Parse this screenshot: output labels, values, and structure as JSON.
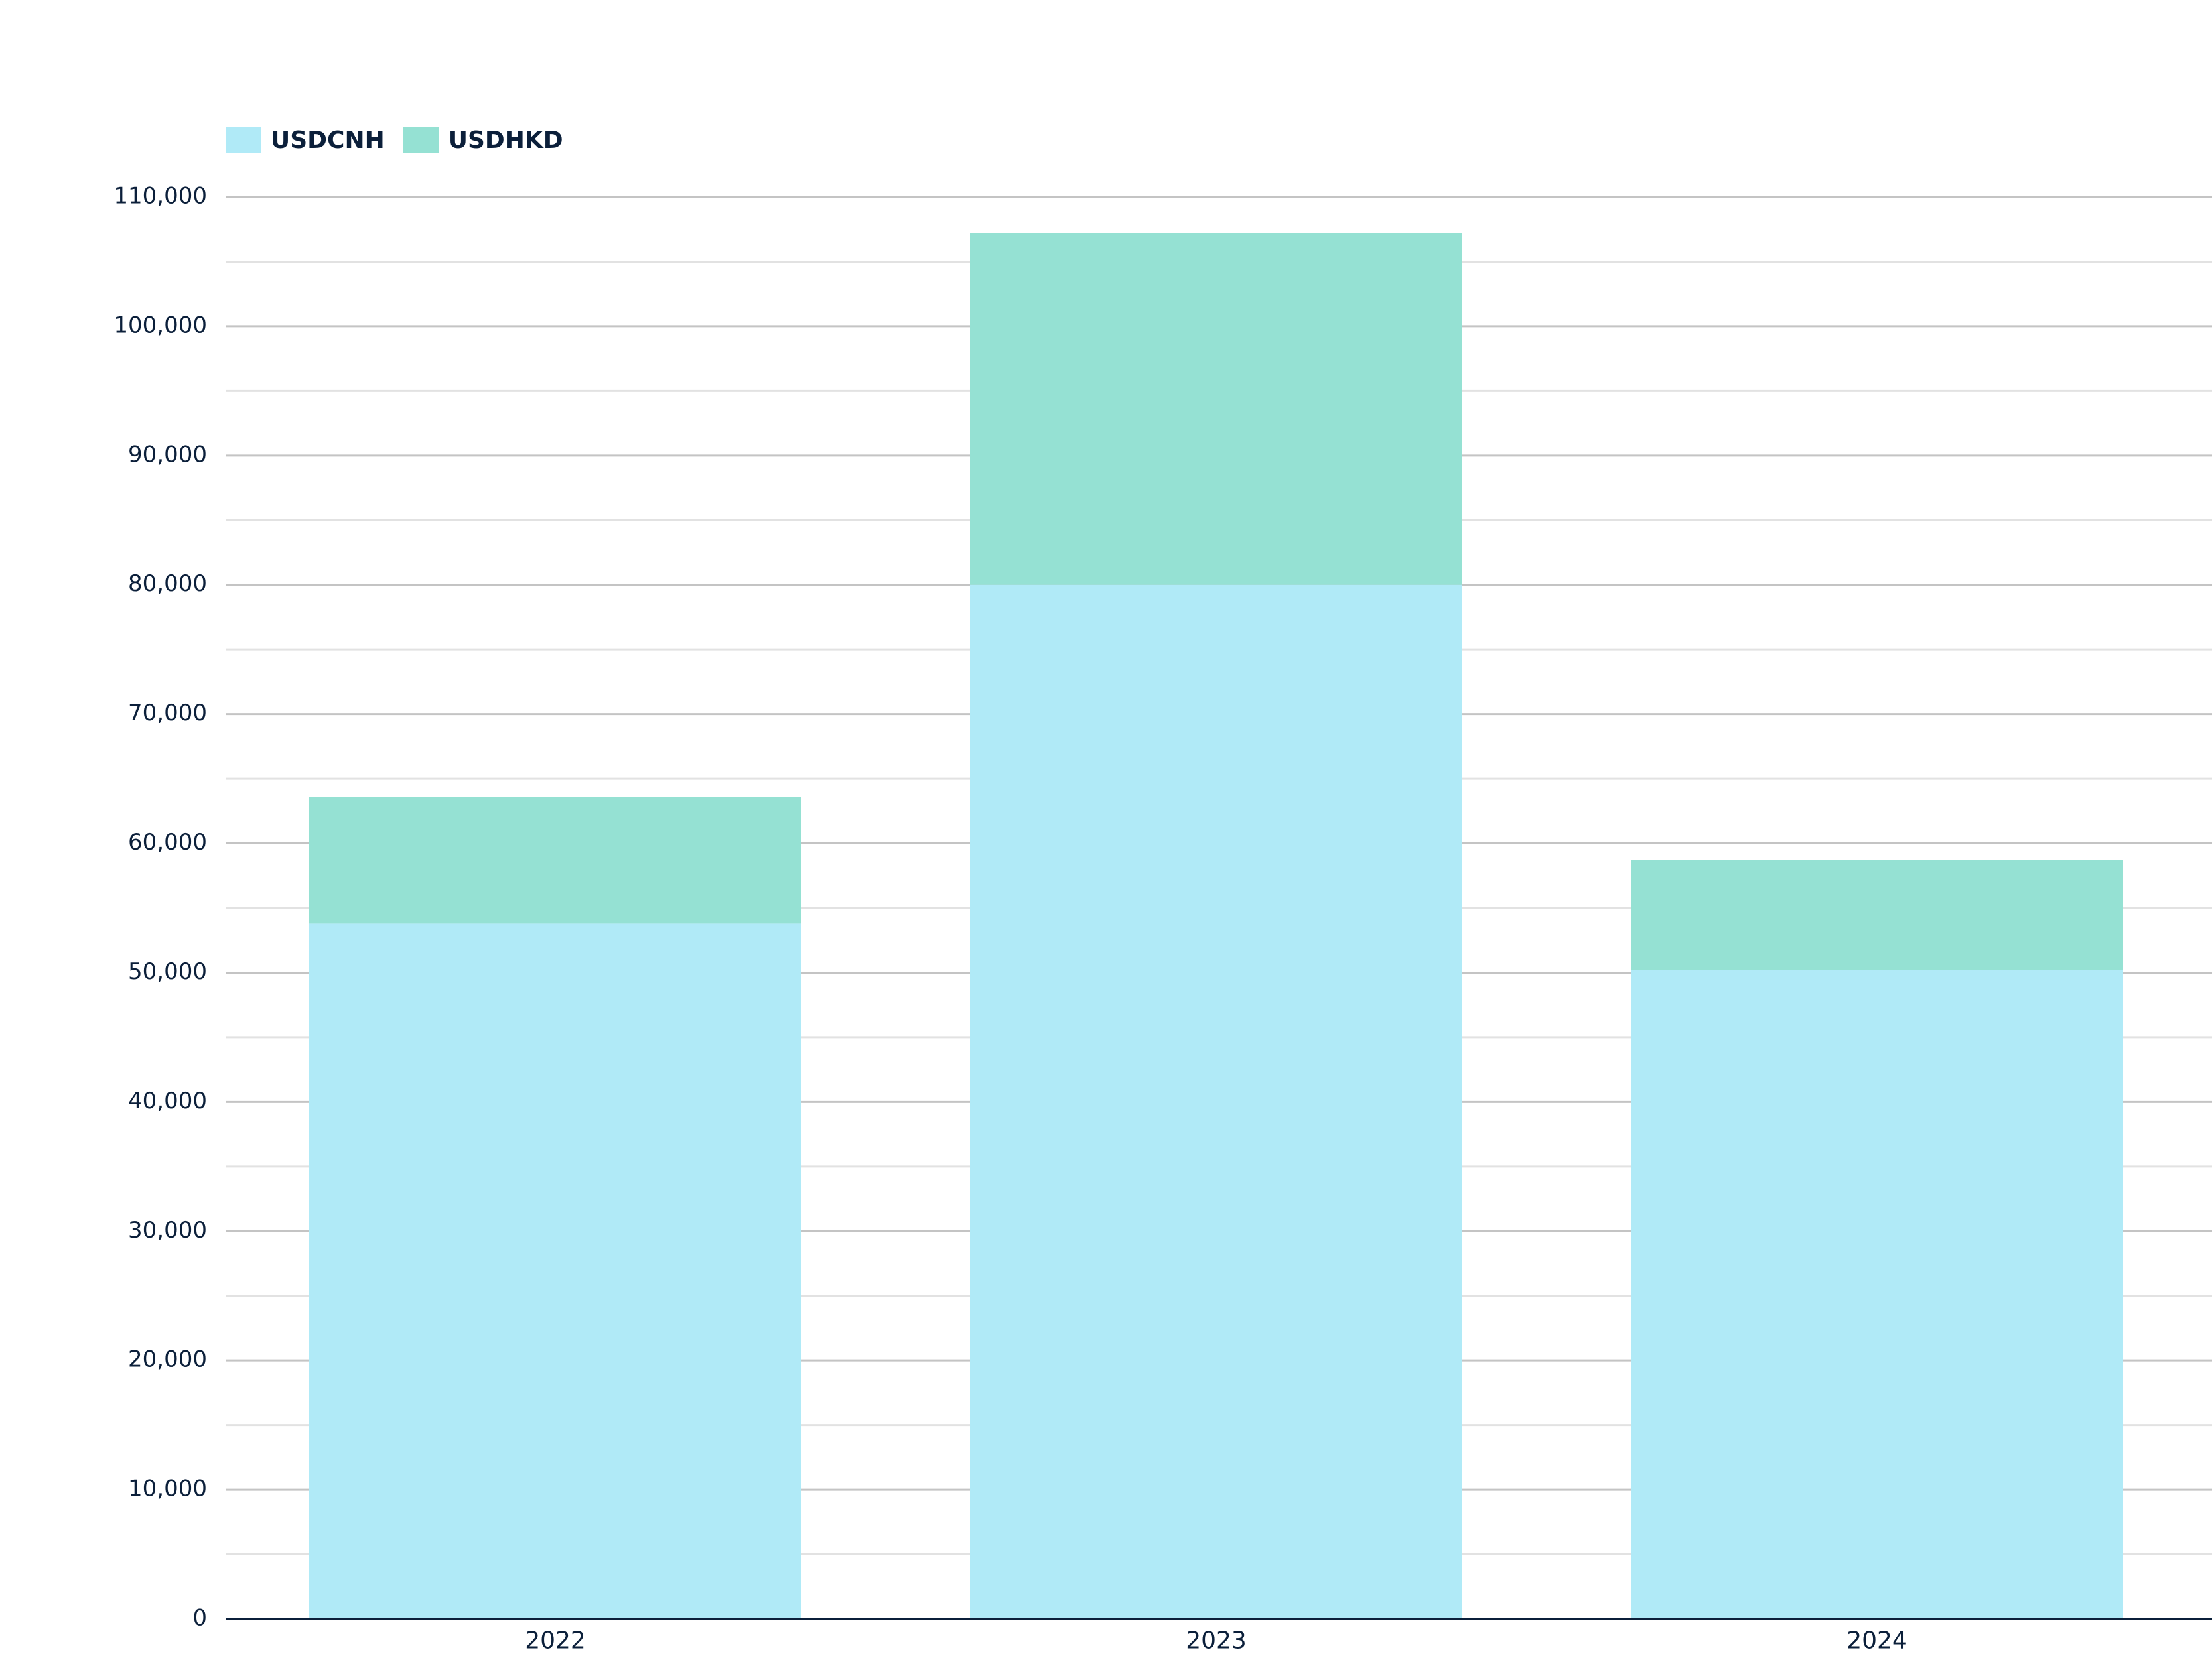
{
  "chart_data": {
    "type": "bar",
    "stacked": true,
    "categories": [
      "2022",
      "2023",
      "2024"
    ],
    "series": [
      {
        "name": "USDCNH",
        "values": [
          53800,
          80000,
          50200
        ],
        "color": "#b0eaf7"
      },
      {
        "name": "USDHKD",
        "values": [
          9800,
          27200,
          8500
        ],
        "color": "#95e1d3"
      }
    ],
    "ylim": [
      0,
      110000
    ],
    "yticks": [
      0,
      10000,
      20000,
      30000,
      40000,
      50000,
      60000,
      70000,
      80000,
      90000,
      100000,
      110000
    ],
    "ytick_labels": [
      "0",
      "10,000",
      "20,000",
      "30,000",
      "40,000",
      "50,000",
      "60,000",
      "70,000",
      "80,000",
      "90,000",
      "100,000",
      "110,000"
    ],
    "minor_gridlines": true,
    "grid": true,
    "legend": "top-left",
    "title": "",
    "xlabel": "",
    "ylabel": ""
  }
}
